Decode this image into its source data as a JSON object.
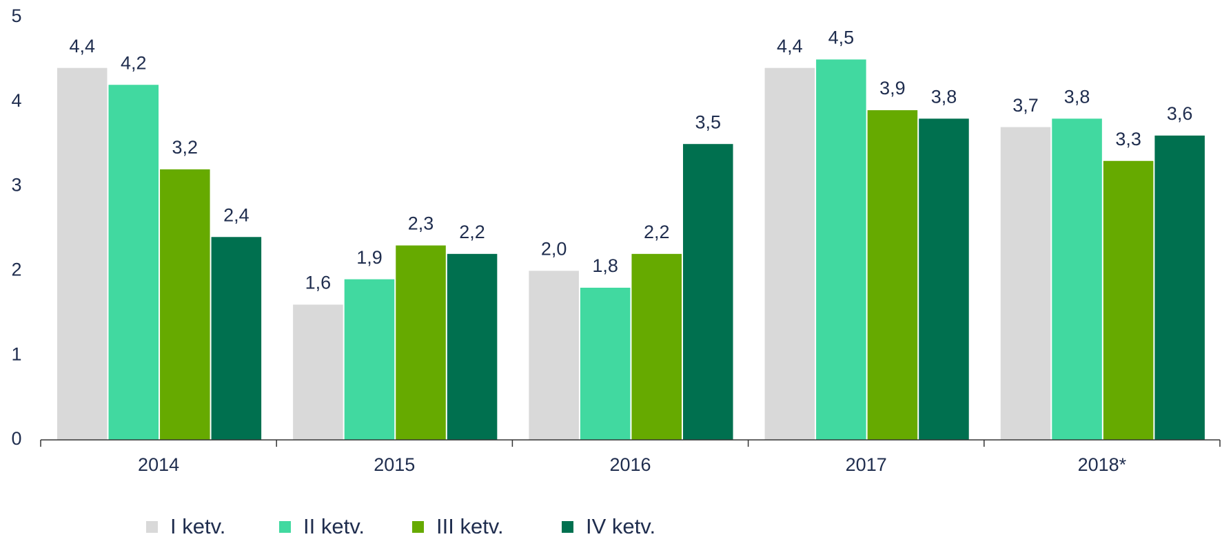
{
  "chart_data": {
    "type": "bar",
    "categories": [
      "2014",
      "2015",
      "2016",
      "2017",
      "2018*"
    ],
    "series": [
      {
        "name": "I ketv.",
        "color": "#d9d9d9",
        "values": [
          4.4,
          1.6,
          2.0,
          4.4,
          3.7
        ],
        "value_labels": [
          "4,4",
          "1,6",
          "2,0",
          "4,4",
          "3,7"
        ]
      },
      {
        "name": "II ketv.",
        "color": "#41d9a0",
        "values": [
          4.2,
          1.9,
          1.8,
          4.5,
          3.8
        ],
        "value_labels": [
          "4,2",
          "1,9",
          "1,8",
          "4,5",
          "3,8"
        ]
      },
      {
        "name": "III ketv.",
        "color": "#66aa00",
        "values": [
          3.2,
          2.3,
          2.2,
          3.9,
          3.3
        ],
        "value_labels": [
          "3,2",
          "2,3",
          "2,2",
          "3,9",
          "3,3"
        ]
      },
      {
        "name": "IV ketv.",
        "color": "#00704f",
        "values": [
          2.4,
          2.2,
          3.5,
          3.8,
          3.6
        ],
        "value_labels": [
          "2,4",
          "2,2",
          "3,5",
          "3,8",
          "3,6"
        ]
      }
    ],
    "ylim": [
      0,
      5
    ],
    "yticks": [
      0,
      1,
      2,
      3,
      4,
      5
    ],
    "grid": false,
    "legend": "bottom"
  }
}
